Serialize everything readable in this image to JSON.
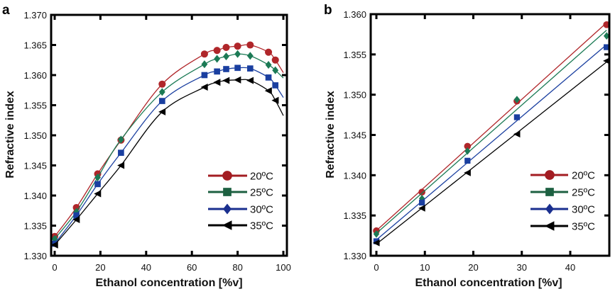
{
  "chart_data": [
    {
      "panel": "a",
      "type": "line",
      "title": "",
      "xlabel": "Ethanol concentration [%v]",
      "ylabel": "Refractive index",
      "xlim": [
        0,
        100
      ],
      "ylim": [
        1.33,
        1.37
      ],
      "xticks": [
        0,
        20,
        40,
        60,
        80,
        100
      ],
      "xtick_labels": [
        "0",
        "20",
        "40",
        "60",
        "80",
        "100"
      ],
      "yticks": [
        1.33,
        1.335,
        1.34,
        1.345,
        1.35,
        1.355,
        1.36,
        1.365,
        1.37
      ],
      "ytick_labels": [
        "1.330",
        "1.335",
        "1.340",
        "1.345",
        "1.350",
        "1.355",
        "1.360",
        "1.365",
        "1.370"
      ],
      "grid": false,
      "legend_position": "lower-right",
      "fit": "smooth-curve",
      "x": [
        0,
        9.5,
        18.8,
        29,
        47,
        65.5,
        71,
        75,
        80,
        85.5,
        93.5,
        96.5
      ],
      "series": [
        {
          "name": "20ºC",
          "color": "#b0262a",
          "legend_color": "#a31c22",
          "marker": "circle",
          "legend_marker": "circle",
          "values": [
            1.3332,
            1.338,
            1.3436,
            1.3492,
            1.3585,
            1.3635,
            1.3641,
            1.3646,
            1.3648,
            1.365,
            1.3638,
            1.3625
          ]
        },
        {
          "name": "25ºC",
          "color": "#1b7a55",
          "legend_color": "#1d6041",
          "marker": "diamond",
          "legend_marker": "square",
          "values": [
            1.3328,
            1.3373,
            1.343,
            1.3493,
            1.3572,
            1.3618,
            1.3627,
            1.3631,
            1.3635,
            1.3632,
            1.3617,
            1.3608
          ]
        },
        {
          "name": "30ºC",
          "color": "#1a3fa0",
          "legend_color": "#1a2f8f",
          "marker": "square",
          "legend_marker": "diamond",
          "values": [
            1.332,
            1.3367,
            1.3419,
            1.3471,
            1.3557,
            1.36,
            1.3606,
            1.361,
            1.3612,
            1.3611,
            1.3596,
            1.3583
          ]
        },
        {
          "name": "35ºC",
          "color": "#000000",
          "legend_color": "#000000",
          "marker": "triangle-left",
          "legend_marker": "triangle-left",
          "values": [
            1.3318,
            1.336,
            1.3403,
            1.345,
            1.3539,
            1.358,
            1.3588,
            1.3591,
            1.3592,
            1.3591,
            1.3574,
            1.3558
          ]
        }
      ],
      "curve_end_x": 100
    },
    {
      "panel": "b",
      "type": "line",
      "title": "",
      "xlabel": "Ethanol concentration [%v]",
      "ylabel": "Refractive index",
      "xlim": [
        -1.2,
        48
      ],
      "ylim": [
        1.33,
        1.36
      ],
      "xticks": [
        0,
        10,
        20,
        30,
        40
      ],
      "xtick_labels": [
        "0",
        "10",
        "20",
        "30",
        "40"
      ],
      "yticks": [
        1.33,
        1.335,
        1.34,
        1.345,
        1.35,
        1.355,
        1.36
      ],
      "ytick_labels": [
        "1.330",
        "1.335",
        "1.340",
        "1.345",
        "1.350",
        "1.355",
        "1.360"
      ],
      "grid": false,
      "legend_position": "lower-right",
      "fit": "linear",
      "x": [
        0,
        9.4,
        18.8,
        29,
        47.5
      ],
      "series": [
        {
          "name": "20ºC",
          "color": "#b0262a",
          "legend_color": "#a31c22",
          "marker": "circle",
          "legend_marker": "circle",
          "values": [
            1.3331,
            1.3379,
            1.3436,
            1.3492,
            1.3587
          ]
        },
        {
          "name": "25ºC",
          "color": "#1b7a55",
          "legend_color": "#1d6041",
          "marker": "diamond",
          "legend_marker": "square",
          "values": [
            1.3327,
            1.3371,
            1.343,
            1.3494,
            1.3573
          ]
        },
        {
          "name": "30ºC",
          "color": "#1a3fa0",
          "legend_color": "#1a2f8f",
          "marker": "square",
          "legend_marker": "diamond",
          "values": [
            1.3318,
            1.3366,
            1.3418,
            1.3472,
            1.3559
          ]
        },
        {
          "name": "35ºC",
          "color": "#000000",
          "legend_color": "#000000",
          "marker": "triangle-left",
          "legend_marker": "triangle-left",
          "values": [
            1.3316,
            1.3359,
            1.3403,
            1.3451,
            1.3542
          ]
        }
      ]
    }
  ]
}
